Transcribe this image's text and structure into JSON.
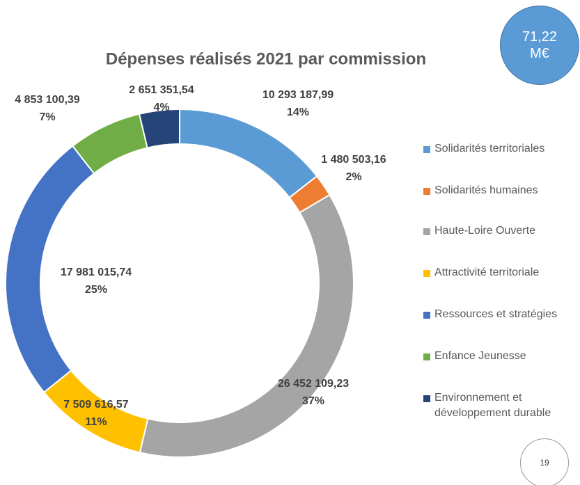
{
  "chart_data": {
    "type": "donut",
    "title": "Dépenses réalisés 2021 par commission",
    "categories": [
      "Solidarités territoriales",
      "Solidarités humaines",
      "Haute-Loire Ouverte",
      "Attractivité territoriale",
      "Ressources et stratégies",
      "Enfance Jeunesse",
      "Environnement et développement durable"
    ],
    "values": [
      10293187.99,
      1480503.16,
      26452109.23,
      7509616.57,
      17981015.74,
      4853100.39,
      2651351.54
    ],
    "value_labels": [
      "10 293 187,99",
      "1 480 503,16",
      "26 452 109,23",
      "7 509 616,57",
      "17 981 015,74",
      "4 853 100,39",
      "2 651 351,54"
    ],
    "percent_labels": [
      "14%",
      "2%",
      "37%",
      "11%",
      "25%",
      "7%",
      "4%"
    ],
    "colors": [
      "#5b9bd5",
      "#ed7d31",
      "#a5a5a5",
      "#ffc000",
      "#4472c4",
      "#70ad47",
      "#264478"
    ],
    "legend": "right"
  },
  "total_badge": "71,22 M€",
  "page_number": "19"
}
